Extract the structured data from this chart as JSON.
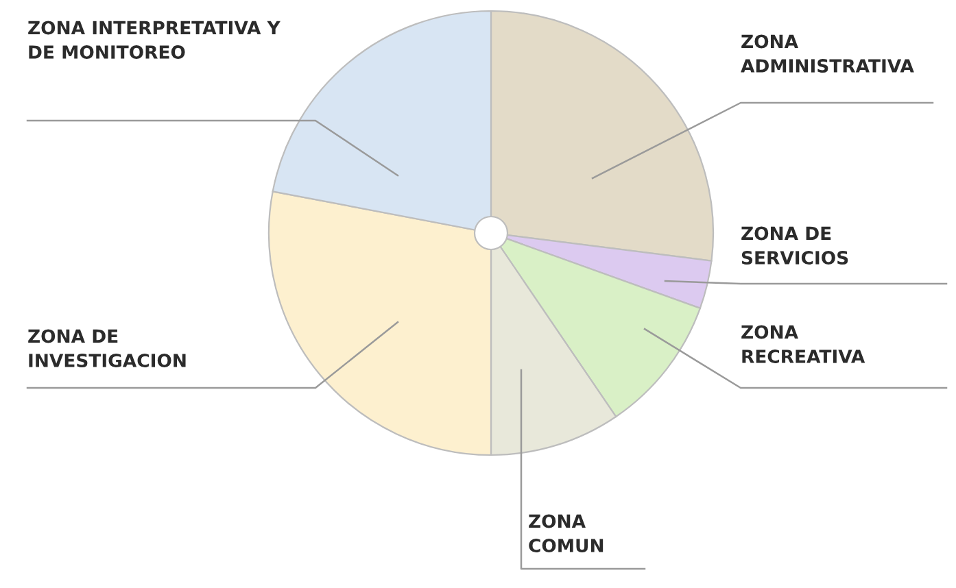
{
  "chart_data": {
    "type": "pie",
    "categories": [
      "ZONA\nADMINISTRATIVA",
      "ZONA DE\nSERVICIOS",
      "ZONA\nRECREATIVA",
      "ZONA\nCOMUN",
      "ZONA DE\nINVESTIGACION",
      "ZONA INTERPRETATIVA Y\nDE MONITOREO"
    ],
    "values": [
      27,
      3.5,
      10,
      9.5,
      28,
      22
    ],
    "colors": [
      "#e3dbc8",
      "#dccaf0",
      "#d9f0c6",
      "#e8e8da",
      "#fdf0cf",
      "#d8e5f3"
    ],
    "legend": false
  }
}
